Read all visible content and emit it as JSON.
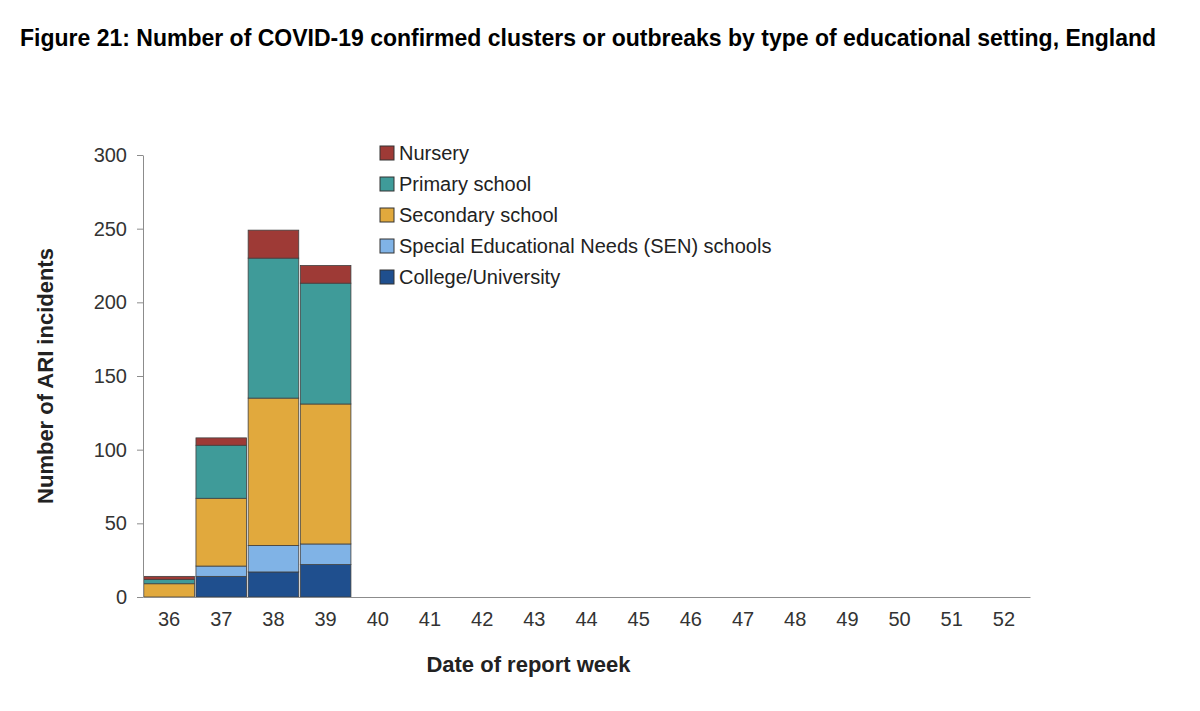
{
  "chart_data": {
    "type": "bar",
    "stacked": true,
    "title": "Figure 21: Number of COVID-19 confirmed clusters or outbreaks by type of educational setting, England",
    "x_label": "Date of report week",
    "y_label": "Number of ARI incidents",
    "categories": [
      "36",
      "37",
      "38",
      "39",
      "40",
      "41",
      "42",
      "43",
      "44",
      "45",
      "46",
      "47",
      "48",
      "49",
      "50",
      "51",
      "52"
    ],
    "series": [
      {
        "name": "Nursery",
        "color": "#9e3a36",
        "values": [
          2,
          5,
          19,
          12,
          null,
          null,
          null,
          null,
          null,
          null,
          null,
          null,
          null,
          null,
          null,
          null,
          null
        ]
      },
      {
        "name": "Primary school",
        "color": "#3f9b99",
        "values": [
          3,
          36,
          95,
          82,
          null,
          null,
          null,
          null,
          null,
          null,
          null,
          null,
          null,
          null,
          null,
          null,
          null
        ]
      },
      {
        "name": "Secondary school",
        "color": "#e1a93d",
        "values": [
          9,
          46,
          100,
          95,
          null,
          null,
          null,
          null,
          null,
          null,
          null,
          null,
          null,
          null,
          null,
          null,
          null
        ]
      },
      {
        "name": "Special Educational Needs (SEN) schools",
        "color": "#80b3e6",
        "values": [
          0,
          7,
          18,
          14,
          null,
          null,
          null,
          null,
          null,
          null,
          null,
          null,
          null,
          null,
          null,
          null,
          null
        ]
      },
      {
        "name": "College/University",
        "color": "#1f4f8e",
        "values": [
          0,
          14,
          17,
          22,
          null,
          null,
          null,
          null,
          null,
          null,
          null,
          null,
          null,
          null,
          null,
          null,
          null
        ]
      }
    ],
    "ylim": [
      0,
      300
    ],
    "yticks": [
      0,
      50,
      100,
      150,
      200,
      250,
      300
    ],
    "grid": false,
    "legend": "top"
  }
}
